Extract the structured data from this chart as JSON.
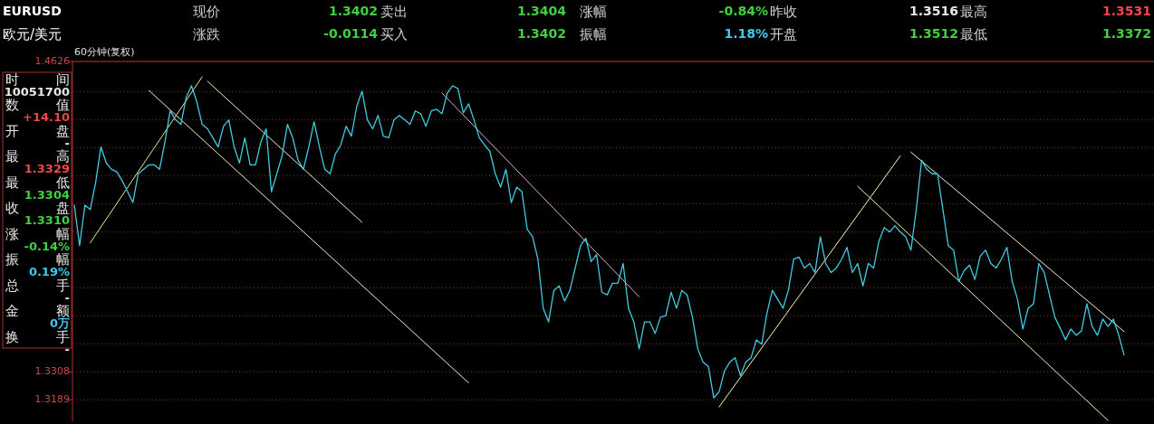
{
  "chart_data": {
    "type": "line",
    "tick_labels": "y",
    "grid": "y",
    "ylim": [
      1.3098,
      1.4626
    ],
    "yticks": [
      1.4626,
      {
        "value": 1.4498,
        "label": null
      },
      {
        "value": 1.4379,
        "label": null
      },
      {
        "value": 1.426,
        "label": null
      },
      {
        "value": 1.4141,
        "label": null
      },
      {
        "value": 1.4022,
        "label": null
      },
      {
        "value": 1.3903,
        "label": null
      },
      {
        "value": 1.3784,
        "label": null
      },
      {
        "value": 1.3665,
        "label": null
      },
      {
        "value": 1.3546,
        "label": null
      },
      {
        "value": 1.3427,
        "label": null
      },
      1.3308,
      1.3189
    ],
    "annotations": [
      "EURUSD",
      "欧元/美元",
      "现价",
      "1.3402",
      "卖出",
      "1.3404",
      "涨幅",
      "-0.84%",
      "昨收",
      "1.3516",
      "最高",
      "1.3531",
      "涨跌",
      "-0.0114",
      "买入",
      "1.3402",
      "振幅",
      "1.18%",
      "开盘",
      "1.3512",
      "最低",
      "1.3372",
      "60分钟(复权)",
      "时",
      "间",
      "10051700",
      "数",
      "值",
      "+14.10",
      "开",
      "盘",
      "-",
      "最",
      "高",
      "1.3329",
      "最",
      "低",
      "1.3304",
      "收",
      "盘",
      "1.3310",
      "涨",
      "幅",
      "-0.14%",
      "振",
      "幅",
      "0.19%",
      "总",
      "手",
      "-",
      "金",
      "额",
      "0万",
      "换",
      "手",
      "-"
    ],
    "categories": [
      null,
      null,
      null,
      null,
      null,
      null,
      null,
      null,
      null,
      null,
      null,
      null,
      null,
      null,
      null,
      null,
      null,
      null,
      null,
      null,
      null,
      null,
      null,
      null,
      null,
      null,
      null,
      null,
      null,
      null,
      null,
      null,
      null,
      null,
      null,
      null,
      null,
      null,
      null,
      null,
      null,
      null,
      null,
      null,
      null,
      null,
      null,
      null,
      null,
      null,
      null,
      null,
      null,
      null,
      null,
      null,
      null,
      null,
      null,
      null,
      null,
      null,
      null,
      null,
      null,
      null,
      null,
      null,
      null,
      null,
      null,
      null,
      null,
      null,
      null,
      null,
      null,
      null,
      null,
      null,
      null,
      null,
      null,
      null,
      null,
      null,
      null,
      null,
      null,
      null,
      null,
      null,
      null,
      null,
      null,
      null,
      null,
      null,
      null,
      null,
      null,
      null,
      null,
      null,
      null,
      null,
      null,
      null,
      null,
      null,
      null,
      null,
      null,
      null,
      null,
      null,
      null,
      null,
      null,
      null,
      null,
      null,
      null,
      null,
      null,
      null,
      null,
      null,
      null,
      null,
      null,
      null,
      null,
      null,
      null,
      null,
      null,
      null,
      null,
      null,
      null,
      null,
      null,
      null,
      null,
      null,
      null,
      null,
      null,
      null,
      null,
      null,
      null,
      null,
      null,
      null,
      null,
      null,
      null,
      null,
      null,
      null,
      null,
      null,
      null,
      null,
      null,
      null,
      null,
      null,
      null,
      null,
      null,
      null,
      null,
      null,
      null,
      null,
      null,
      null,
      null,
      null,
      null,
      null,
      null,
      null,
      null,
      null,
      null,
      null,
      null,
      null,
      null,
      null,
      null,
      null,
      null,
      null
    ],
    "series": [
      {
        "type": "line",
        "color": "#40cce0",
        "values": [
          1.4016,
          1.3844,
          1.4016,
          1.3997,
          1.4111,
          1.4263,
          1.4195,
          1.4168,
          1.4157,
          1.4119,
          1.4073,
          1.4027,
          1.4149,
          1.4168,
          1.4187,
          1.4187,
          1.4168,
          1.4283,
          1.4416,
          1.4378,
          1.4359,
          1.4473,
          1.4523,
          1.4454,
          1.4359,
          1.434,
          1.4302,
          1.4263,
          1.4351,
          1.4378,
          1.4263,
          1.4195,
          1.4302,
          1.4187,
          1.4187,
          1.4283,
          1.434,
          1.4073,
          1.4149,
          1.4225,
          1.4359,
          1.4302,
          1.4206,
          1.4168,
          1.4263,
          1.437,
          1.4263,
          1.4168,
          1.4149,
          1.4233,
          1.4271,
          1.4351,
          1.4309,
          1.4435,
          1.45,
          1.4378,
          1.434,
          1.4397,
          1.4309,
          1.4302,
          1.4378,
          1.4397,
          1.4378,
          1.4359,
          1.4416,
          1.4404,
          1.4351,
          1.4416,
          1.4423,
          1.4404,
          1.4492,
          1.4523,
          1.4511,
          1.4408,
          1.4446,
          1.4378,
          1.4302,
          1.4271,
          1.4244,
          1.4149,
          1.4092,
          1.4168,
          1.4027,
          1.4092,
          1.4073,
          1.3913,
          1.3882,
          1.3787,
          1.3578,
          1.352,
          1.3654,
          1.3673,
          1.3608,
          1.3654,
          1.3749,
          1.3844,
          1.3875,
          1.3776,
          1.3806,
          1.3646,
          1.3635,
          1.3684,
          1.3684,
          1.3768,
          1.3578,
          1.352,
          1.3406,
          1.352,
          1.352,
          1.3471,
          1.354,
          1.3547,
          1.3646,
          1.3578,
          1.3654,
          1.3635,
          1.354,
          1.3406,
          1.3349,
          1.333,
          1.3197,
          1.3223,
          1.3311,
          1.3349,
          1.3368,
          1.3292,
          1.3349,
          1.3368,
          1.3444,
          1.3425,
          1.3559,
          1.3654,
          1.3616,
          1.3578,
          1.3654,
          1.3787,
          1.3795,
          1.3749,
          1.3768,
          1.373,
          1.3882,
          1.3768,
          1.373,
          1.3749,
          1.3787,
          1.3837,
          1.373,
          1.3768,
          1.3673,
          1.3768,
          1.3749,
          1.3863,
          1.3921,
          1.3902,
          1.3928,
          1.3902,
          1.3882,
          1.3825,
          1.3997,
          1.4206,
          1.4168,
          1.4149,
          1.4149,
          1.3997,
          1.3844,
          1.3825,
          1.3692,
          1.3738,
          1.3761,
          1.37,
          1.3799,
          1.3825,
          1.3768,
          1.3749,
          1.3787,
          1.3837,
          1.3692,
          1.3616,
          1.349,
          1.3578,
          1.3597,
          1.3768,
          1.373,
          1.3635,
          1.354,
          1.3494,
          1.3444,
          1.349,
          1.3463,
          1.3482,
          1.3597,
          1.3501,
          1.3463,
          1.3532,
          1.3501,
          1.3532,
          1.3463,
          1.338
        ]
      },
      {
        "type": "line",
        "color": "#f0f080",
        "values": [
          null,
          null,
          null,
          1.3856,
          null,
          null,
          null,
          null,
          null,
          null,
          null,
          null,
          null,
          null,
          null,
          null,
          null,
          null,
          null,
          null,
          null,
          null,
          null,
          null,
          1.4561,
          null,
          null,
          null,
          null,
          null,
          null,
          null,
          null,
          null,
          null,
          null,
          null,
          null,
          null,
          null,
          null,
          null,
          null,
          null,
          null,
          null,
          null,
          null,
          null,
          null,
          null,
          null,
          null,
          null,
          null,
          null,
          null,
          null,
          null,
          null,
          null,
          null,
          null,
          null,
          null,
          null,
          null,
          null,
          null,
          null,
          null,
          null,
          null,
          null,
          null,
          null,
          null,
          null,
          null,
          null,
          null,
          null,
          null,
          null,
          null,
          null,
          null,
          null,
          null,
          null,
          null,
          null,
          null,
          null,
          null,
          null,
          null,
          null,
          null,
          null,
          null,
          null,
          null,
          null,
          null,
          null,
          null,
          null,
          null,
          null,
          null,
          null,
          null,
          null,
          null,
          null,
          null,
          null,
          null,
          null,
          null,
          null,
          null,
          null,
          null,
          null,
          null,
          null,
          null,
          null,
          null,
          null,
          null,
          null,
          null,
          null,
          null,
          null,
          null,
          null,
          null,
          null,
          null,
          null,
          null,
          null,
          null,
          null,
          null,
          null,
          null,
          null,
          null,
          null,
          null,
          null,
          null,
          null,
          null,
          null,
          null,
          null,
          null,
          null,
          null,
          null,
          null,
          null,
          null,
          null,
          null,
          null,
          null,
          null,
          null,
          null,
          null,
          null,
          null,
          null,
          null,
          null,
          null,
          null,
          null,
          null,
          null,
          null,
          null,
          null,
          null,
          null,
          null,
          null,
          null,
          null,
          null,
          null
        ]
      },
      {
        "type": "line",
        "color": "#f4f4c8",
        "values": [
          null,
          null,
          null,
          null,
          null,
          null,
          null,
          null,
          null,
          null,
          null,
          null,
          null,
          null,
          1.4503,
          null,
          null,
          null,
          null,
          null,
          null,
          null,
          null,
          null,
          null,
          null,
          null,
          null,
          null,
          null,
          null,
          null,
          null,
          null,
          null,
          null,
          null,
          null,
          null,
          null,
          null,
          null,
          null,
          null,
          null,
          null,
          null,
          null,
          null,
          null,
          null,
          null,
          null,
          null,
          null,
          null,
          null,
          null,
          null,
          null,
          null,
          null,
          null,
          null,
          null,
          null,
          null,
          null,
          null,
          null,
          null,
          null,
          null,
          null,
          1.3261,
          null,
          null,
          null,
          null,
          null,
          null,
          null,
          null,
          null,
          null,
          null,
          null,
          null,
          null,
          null,
          null,
          null,
          null,
          null,
          null,
          null,
          null,
          null,
          null,
          null,
          null,
          null,
          null,
          null,
          null,
          null,
          null,
          null,
          null,
          null,
          null,
          null,
          null,
          null,
          null,
          null,
          null,
          null,
          null,
          null,
          null,
          null,
          null,
          null,
          null,
          null,
          null,
          null,
          null,
          null,
          null,
          null,
          null,
          null,
          null,
          null,
          null,
          null,
          null,
          null,
          null,
          null,
          null,
          null,
          null,
          null,
          null,
          null,
          null,
          null,
          null,
          null,
          null,
          null,
          null,
          null,
          null,
          null,
          null,
          null,
          null,
          null,
          null,
          null,
          null,
          null,
          null,
          null,
          null,
          null,
          null,
          null,
          null,
          null,
          null,
          null,
          null,
          null,
          null,
          null,
          null,
          null,
          null,
          null,
          null,
          null,
          null,
          null,
          null,
          null,
          null,
          null,
          null,
          null,
          null,
          null,
          null,
          null
        ]
      },
      {
        "type": "line",
        "color": "#f4f4c8",
        "values": [
          null,
          null,
          null,
          null,
          null,
          null,
          null,
          null,
          null,
          null,
          null,
          null,
          null,
          null,
          null,
          null,
          null,
          null,
          null,
          null,
          null,
          null,
          null,
          null,
          null,
          1.4542,
          null,
          null,
          null,
          null,
          null,
          null,
          null,
          null,
          null,
          null,
          null,
          null,
          null,
          null,
          null,
          null,
          null,
          null,
          null,
          null,
          null,
          null,
          null,
          null,
          null,
          null,
          null,
          null,
          1.3943,
          null,
          null,
          null,
          null,
          null,
          null,
          null,
          null,
          null,
          null,
          null,
          null,
          null,
          null,
          null,
          null,
          null,
          null,
          null,
          null,
          null,
          null,
          null,
          null,
          null,
          null,
          null,
          null,
          null,
          null,
          null,
          null,
          null,
          null,
          null,
          null,
          null,
          null,
          null,
          null,
          null,
          null,
          null,
          null,
          null,
          null,
          null,
          null,
          null,
          null,
          null,
          null,
          null,
          null,
          null,
          null,
          null,
          null,
          null,
          null,
          null,
          null,
          null,
          null,
          null,
          null,
          null,
          null,
          null,
          null,
          null,
          null,
          null,
          null,
          null,
          null,
          null,
          null,
          null,
          null,
          null,
          null,
          null,
          null,
          null,
          null,
          null,
          null,
          null,
          null,
          null,
          null,
          null,
          null,
          null,
          null,
          null,
          null,
          null,
          null,
          null,
          null,
          null,
          null,
          null,
          null,
          null,
          null,
          null,
          null,
          null,
          null,
          null,
          null,
          null,
          null,
          null,
          null,
          null,
          null,
          null,
          null,
          null,
          null,
          null,
          null,
          null,
          null,
          null,
          null,
          null,
          null,
          null,
          null,
          null,
          null,
          null,
          null,
          null,
          null,
          null,
          null,
          null
        ]
      },
      {
        "type": "line",
        "color": "#e0b0e0",
        "values": [
          null,
          null,
          null,
          null,
          null,
          null,
          null,
          null,
          null,
          null,
          null,
          null,
          null,
          null,
          null,
          null,
          null,
          null,
          null,
          null,
          null,
          null,
          null,
          null,
          null,
          null,
          null,
          null,
          null,
          null,
          null,
          null,
          null,
          null,
          null,
          null,
          null,
          null,
          null,
          null,
          null,
          null,
          null,
          null,
          null,
          null,
          null,
          null,
          null,
          null,
          null,
          null,
          null,
          null,
          null,
          null,
          null,
          null,
          null,
          null,
          null,
          null,
          null,
          null,
          null,
          null,
          null,
          null,
          null,
          1.4492,
          null,
          null,
          null,
          null,
          null,
          null,
          null,
          null,
          null,
          null,
          null,
          null,
          null,
          null,
          null,
          null,
          null,
          null,
          null,
          null,
          null,
          null,
          null,
          null,
          null,
          null,
          null,
          null,
          null,
          null,
          null,
          null,
          null,
          null,
          null,
          null,
          1.3627,
          null,
          null,
          null,
          null,
          null,
          null,
          null,
          null,
          null,
          null,
          null,
          null,
          null,
          null,
          null,
          null,
          null,
          null,
          null,
          null,
          null,
          null,
          null,
          null,
          null,
          null,
          null,
          null,
          null,
          null,
          null,
          null,
          null,
          null,
          null,
          null,
          null,
          null,
          null,
          null,
          null,
          null,
          null,
          null,
          null,
          null,
          null,
          null,
          null,
          null,
          null,
          null,
          null,
          null,
          null,
          null,
          null,
          null,
          null,
          null,
          null,
          null,
          null,
          null,
          null,
          null,
          null,
          null,
          null,
          null,
          null,
          null,
          null,
          null,
          null,
          null,
          null,
          null,
          null,
          null,
          null,
          null,
          null,
          null,
          null,
          null,
          null,
          null,
          null,
          null,
          null
        ]
      },
      {
        "type": "line",
        "color": "#ffffb0",
        "values": [
          null,
          null,
          null,
          null,
          null,
          null,
          null,
          null,
          null,
          null,
          null,
          null,
          null,
          null,
          null,
          null,
          null,
          null,
          null,
          null,
          null,
          null,
          null,
          null,
          null,
          null,
          null,
          null,
          null,
          null,
          null,
          null,
          null,
          null,
          null,
          null,
          null,
          null,
          null,
          null,
          null,
          null,
          null,
          null,
          null,
          null,
          null,
          null,
          null,
          null,
          null,
          null,
          null,
          null,
          null,
          null,
          null,
          null,
          null,
          null,
          null,
          null,
          null,
          null,
          null,
          null,
          null,
          null,
          null,
          null,
          null,
          null,
          null,
          null,
          null,
          null,
          null,
          null,
          null,
          null,
          null,
          null,
          null,
          null,
          null,
          null,
          null,
          null,
          null,
          null,
          null,
          null,
          null,
          null,
          null,
          null,
          null,
          null,
          null,
          null,
          null,
          null,
          null,
          null,
          null,
          null,
          null,
          null,
          null,
          null,
          null,
          null,
          null,
          null,
          null,
          null,
          null,
          null,
          null,
          null,
          null,
          1.3159,
          null,
          null,
          null,
          null,
          null,
          null,
          null,
          null,
          null,
          null,
          null,
          null,
          null,
          null,
          null,
          null,
          null,
          null,
          null,
          null,
          null,
          null,
          null,
          null,
          null,
          null,
          null,
          null,
          null,
          null,
          null,
          null,
          null,
          1.4225,
          null,
          null,
          null,
          null,
          null,
          null,
          null,
          null,
          null,
          null,
          null,
          null,
          null,
          null,
          null,
          null,
          null,
          null,
          null,
          null,
          null,
          null,
          null,
          null,
          null,
          null,
          null,
          null,
          null,
          null,
          null,
          null,
          null,
          null,
          null,
          null,
          null,
          null,
          null,
          null,
          null,
          null
        ]
      },
      {
        "type": "line",
        "color": "#f4f4b8",
        "values": [
          null,
          null,
          null,
          null,
          null,
          null,
          null,
          null,
          null,
          null,
          null,
          null,
          null,
          null,
          null,
          null,
          null,
          null,
          null,
          null,
          null,
          null,
          null,
          null,
          null,
          null,
          null,
          null,
          null,
          null,
          null,
          null,
          null,
          null,
          null,
          null,
          null,
          null,
          null,
          null,
          null,
          null,
          null,
          null,
          null,
          null,
          null,
          null,
          null,
          null,
          null,
          null,
          null,
          null,
          null,
          null,
          null,
          null,
          null,
          null,
          null,
          null,
          null,
          null,
          null,
          null,
          null,
          null,
          null,
          null,
          null,
          null,
          null,
          null,
          null,
          null,
          null,
          null,
          null,
          null,
          null,
          null,
          null,
          null,
          null,
          null,
          null,
          null,
          null,
          null,
          null,
          null,
          null,
          null,
          null,
          null,
          null,
          null,
          null,
          null,
          null,
          null,
          null,
          null,
          null,
          null,
          null,
          null,
          null,
          null,
          null,
          null,
          null,
          null,
          null,
          null,
          null,
          null,
          null,
          null,
          null,
          null,
          null,
          null,
          null,
          null,
          null,
          null,
          null,
          null,
          null,
          null,
          null,
          null,
          null,
          null,
          null,
          null,
          null,
          null,
          null,
          null,
          null,
          null,
          null,
          null,
          null,
          1.4096,
          null,
          null,
          null,
          null,
          null,
          null,
          null,
          null,
          null,
          null,
          null,
          null,
          null,
          null,
          null,
          null,
          null,
          null,
          null,
          null,
          null,
          null,
          null,
          null,
          null,
          null,
          null,
          null,
          null,
          null,
          null,
          null,
          null,
          null,
          null,
          null,
          null,
          null,
          null,
          null,
          null,
          null,
          null,
          null,
          null,
          null,
          1.3101,
          null,
          null,
          null
        ]
      },
      {
        "type": "line",
        "color": "#f4f4d4",
        "values": [
          null,
          null,
          null,
          null,
          null,
          null,
          null,
          null,
          null,
          null,
          null,
          null,
          null,
          null,
          null,
          null,
          null,
          null,
          null,
          null,
          null,
          null,
          null,
          null,
          null,
          null,
          null,
          null,
          null,
          null,
          null,
          null,
          null,
          null,
          null,
          null,
          null,
          null,
          null,
          null,
          null,
          null,
          null,
          null,
          null,
          null,
          null,
          null,
          null,
          null,
          null,
          null,
          null,
          null,
          null,
          null,
          null,
          null,
          null,
          null,
          null,
          null,
          null,
          null,
          null,
          null,
          null,
          null,
          null,
          null,
          null,
          null,
          null,
          null,
          null,
          null,
          null,
          null,
          null,
          null,
          null,
          null,
          null,
          null,
          null,
          null,
          null,
          null,
          null,
          null,
          null,
          null,
          null,
          null,
          null,
          null,
          null,
          null,
          null,
          null,
          null,
          null,
          null,
          null,
          null,
          null,
          null,
          null,
          null,
          null,
          null,
          null,
          null,
          null,
          null,
          null,
          null,
          null,
          null,
          null,
          null,
          null,
          null,
          null,
          null,
          null,
          null,
          null,
          null,
          null,
          null,
          null,
          null,
          null,
          null,
          null,
          null,
          null,
          null,
          null,
          null,
          null,
          null,
          null,
          null,
          null,
          null,
          null,
          null,
          null,
          null,
          null,
          null,
          null,
          null,
          null,
          null,
          1.4241,
          null,
          null,
          null,
          null,
          null,
          null,
          null,
          null,
          null,
          null,
          null,
          null,
          null,
          null,
          null,
          null,
          null,
          null,
          null,
          null,
          null,
          null,
          null,
          null,
          null,
          null,
          null,
          null,
          null,
          null,
          null,
          null,
          null,
          null,
          null,
          null,
          null,
          null,
          null,
          1.3479
        ]
      }
    ]
  }
}
